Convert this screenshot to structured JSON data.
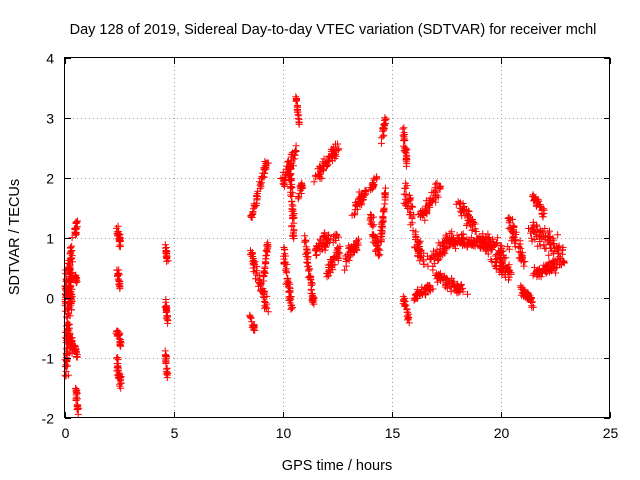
{
  "chart_data": {
    "type": "scatter",
    "title": "Day 128 of 2019, Sidereal Day-to-day VTEC variation (SDTVAR) for receiver mchl",
    "xlabel": "GPS time / hours",
    "ylabel": "SDTVAR / TECUs",
    "xlim": [
      0,
      25
    ],
    "ylim": [
      -2,
      4
    ],
    "xticks": [
      0,
      5,
      10,
      15,
      20,
      25
    ],
    "yticks": [
      -2,
      -1,
      0,
      1,
      2,
      3,
      4
    ],
    "grid": true,
    "marker": "plus",
    "color": "#ff0000",
    "series": [
      {
        "name": "SDTVAR",
        "segments": [
          [
            0.0,
            -0.2,
            0.05,
            0.4,
            0.2,
            0.5
          ],
          [
            0.05,
            -1.2,
            0.3,
            0.9,
            0.25,
            0.45
          ],
          [
            0.1,
            -0.6,
            0.35,
            -0.8,
            0.3,
            0.6
          ],
          [
            0.2,
            0.6,
            0.3,
            -0.2,
            0.2,
            0.35
          ],
          [
            0.45,
            1.05,
            0.55,
            1.3,
            0.15,
            0.2
          ],
          [
            0.45,
            0.4,
            0.55,
            0.25,
            0.15,
            0.15
          ],
          [
            0.45,
            -0.8,
            0.55,
            -1.0,
            0.15,
            0.2
          ],
          [
            0.5,
            -1.5,
            0.6,
            -1.9,
            0.15,
            0.25
          ],
          [
            2.35,
            1.2,
            2.55,
            0.9,
            0.2,
            0.35
          ],
          [
            2.4,
            0.5,
            2.5,
            0.2,
            0.15,
            0.2
          ],
          [
            2.35,
            -0.5,
            2.55,
            -0.8,
            0.2,
            0.25
          ],
          [
            2.35,
            -1.0,
            2.55,
            -1.45,
            0.2,
            0.35
          ],
          [
            4.6,
            0.9,
            4.7,
            0.6,
            0.12,
            0.1
          ],
          [
            4.6,
            0.0,
            4.7,
            -0.4,
            0.12,
            0.2
          ],
          [
            4.6,
            -0.9,
            4.7,
            -1.3,
            0.12,
            0.15
          ],
          [
            8.5,
            1.3,
            9.3,
            2.3,
            0.15,
            0.2
          ],
          [
            8.5,
            0.8,
            9.3,
            -0.2,
            0.2,
            0.35
          ],
          [
            8.5,
            -0.3,
            8.7,
            -0.55,
            0.12,
            0.12
          ],
          [
            9.1,
            0.3,
            9.3,
            0.9,
            0.1,
            0.2
          ],
          [
            10.0,
            1.9,
            10.6,
            2.5,
            0.35,
            0.4
          ],
          [
            10.0,
            0.8,
            10.4,
            -0.15,
            0.25,
            0.35
          ],
          [
            10.3,
            2.2,
            10.5,
            1.0,
            0.2,
            0.3
          ],
          [
            10.6,
            3.35,
            10.75,
            2.9,
            0.08,
            0.15
          ],
          [
            10.7,
            1.7,
            10.9,
            1.9,
            0.12,
            0.25
          ],
          [
            11.0,
            1.0,
            11.4,
            -0.1,
            0.15,
            0.25
          ],
          [
            11.5,
            2.0,
            12.5,
            2.5,
            0.5,
            0.3
          ],
          [
            11.5,
            0.8,
            12.5,
            1.1,
            0.5,
            0.35
          ],
          [
            12.0,
            0.4,
            12.6,
            0.8,
            0.3,
            0.35
          ],
          [
            12.8,
            0.6,
            13.5,
            1.0,
            0.3,
            0.4
          ],
          [
            13.2,
            1.4,
            13.8,
            1.8,
            0.3,
            0.35
          ],
          [
            14.0,
            1.4,
            14.4,
            0.7,
            0.2,
            0.4
          ],
          [
            14.0,
            1.8,
            14.3,
            2.0,
            0.15,
            0.2
          ],
          [
            14.5,
            2.6,
            14.7,
            2.95,
            0.1,
            0.25
          ],
          [
            14.5,
            1.0,
            14.7,
            1.8,
            0.1,
            0.3
          ],
          [
            15.5,
            2.8,
            15.7,
            2.2,
            0.15,
            0.2
          ],
          [
            15.5,
            0.0,
            15.8,
            -0.4,
            0.2,
            0.2
          ],
          [
            15.6,
            1.8,
            16.4,
            0.6,
            0.4,
            0.5
          ],
          [
            16.0,
            0.0,
            16.8,
            0.2,
            0.4,
            0.25
          ],
          [
            16.3,
            1.3,
            17.2,
            1.9,
            0.4,
            0.4
          ],
          [
            16.8,
            0.6,
            17.8,
            1.0,
            0.5,
            0.4
          ],
          [
            17.0,
            0.4,
            18.3,
            0.1,
            0.6,
            0.3
          ],
          [
            17.5,
            1.0,
            19.5,
            0.9,
            1.0,
            0.35
          ],
          [
            18.0,
            1.6,
            18.8,
            1.2,
            0.4,
            0.35
          ],
          [
            19.0,
            1.0,
            20.2,
            0.7,
            0.6,
            0.45
          ],
          [
            19.6,
            0.6,
            20.5,
            0.4,
            0.4,
            0.35
          ],
          [
            20.4,
            1.3,
            21.0,
            0.6,
            0.3,
            0.5
          ],
          [
            20.8,
            0.2,
            21.5,
            -0.1,
            0.35,
            0.2
          ],
          [
            21.4,
            1.2,
            22.8,
            0.7,
            0.7,
            0.6
          ],
          [
            21.5,
            1.7,
            22.0,
            1.4,
            0.25,
            0.2
          ],
          [
            21.5,
            0.4,
            22.8,
            0.6,
            0.7,
            0.3
          ]
        ]
      }
    ]
  }
}
